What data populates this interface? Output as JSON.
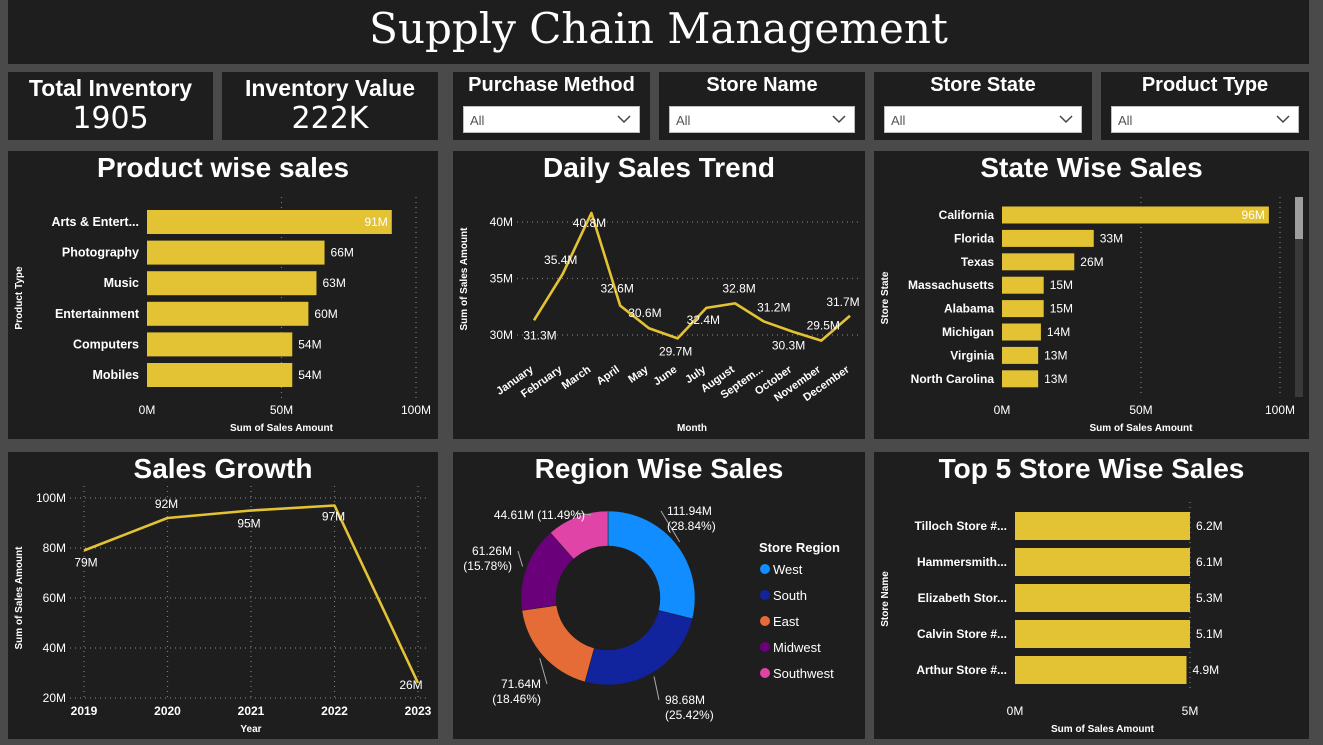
{
  "title": "Supply Chain Management",
  "kpis": [
    {
      "label": "Total Inventory",
      "value": "1905"
    },
    {
      "label": "Inventory Value",
      "value": "222K"
    }
  ],
  "slicers": [
    {
      "label": "Purchase Method",
      "value": "All"
    },
    {
      "label": "Store Name",
      "value": "All"
    },
    {
      "label": "Store State",
      "value": "All"
    },
    {
      "label": "Product Type",
      "value": "All"
    }
  ],
  "colors": {
    "bar": "#e3c234",
    "line": "#e3c234",
    "panel": "#1e1e1e",
    "background": "#4a4a4a",
    "grid": "#7a7a7a"
  },
  "chart_data": [
    {
      "id": "product",
      "type": "bar",
      "orientation": "horizontal",
      "title": "Product wise sales",
      "xlabel": "Sum of Sales Amount",
      "ylabel": "Product Type",
      "categories": [
        "Arts & Entert...",
        "Photography",
        "Music",
        "Entertainment",
        "Computers",
        "Mobiles"
      ],
      "values": [
        91,
        66,
        63,
        60,
        54,
        54
      ],
      "data_labels": [
        "91M",
        "66M",
        "63M",
        "60M",
        "54M",
        "54M"
      ],
      "xlim": [
        0,
        100
      ],
      "xticks": [
        "0M",
        "50M",
        "100M"
      ]
    },
    {
      "id": "daily",
      "type": "line",
      "title": "Daily Sales Trend",
      "xlabel": "Month",
      "ylabel": "Sum of Sales Amount",
      "categories": [
        "January",
        "February",
        "March",
        "April",
        "May",
        "June",
        "July",
        "August",
        "Septem...",
        "October",
        "November",
        "December"
      ],
      "values": [
        31.3,
        35.4,
        40.8,
        32.6,
        30.6,
        29.7,
        32.4,
        32.8,
        31.2,
        30.3,
        29.5,
        31.7
      ],
      "data_labels": [
        "31.3M",
        "35.4M",
        "40.8M",
        "32.6M",
        "30.6M",
        "29.7M",
        "32.4M",
        "32.8M",
        "31.2M",
        "30.3M",
        "29.5M",
        "31.7M"
      ],
      "ylim": [
        30,
        40
      ],
      "yticks": [
        "30M",
        "35M",
        "40M"
      ]
    },
    {
      "id": "state",
      "type": "bar",
      "orientation": "horizontal",
      "title": "State Wise Sales",
      "xlabel": "Sum of Sales Amount",
      "ylabel": "Store State",
      "categories": [
        "California",
        "Florida",
        "Texas",
        "Massachusetts",
        "Alabama",
        "Michigan",
        "Virginia",
        "North Carolina"
      ],
      "values": [
        96,
        33,
        26,
        15,
        15,
        14,
        13,
        13
      ],
      "data_labels": [
        "96M",
        "33M",
        "26M",
        "15M",
        "15M",
        "14M",
        "13M",
        "13M"
      ],
      "xlim": [
        0,
        100
      ],
      "xticks": [
        "0M",
        "50M",
        "100M"
      ]
    },
    {
      "id": "growth",
      "type": "line",
      "title": "Sales Growth",
      "xlabel": "Year",
      "ylabel": "Sum of Sales Amount",
      "categories": [
        "2019",
        "2020",
        "2021",
        "2022",
        "2023"
      ],
      "values": [
        79,
        92,
        95,
        97,
        26
      ],
      "data_labels": [
        "79M",
        "92M",
        "95M",
        "97M",
        "26M"
      ],
      "ylim": [
        20,
        100
      ],
      "yticks": [
        "20M",
        "40M",
        "60M",
        "80M",
        "100M"
      ]
    },
    {
      "id": "region",
      "type": "pie",
      "donut": true,
      "title": "Region Wise Sales",
      "legend_title": "Store Region",
      "legend_position": "right",
      "categories": [
        "West",
        "South",
        "East",
        "Midwest",
        "Southwest"
      ],
      "values": [
        111.94,
        98.68,
        71.64,
        61.26,
        44.61
      ],
      "percent_labels": [
        "111.94M (28.84%)",
        "98.68M (25.42%)",
        "71.64M (18.46%)",
        "61.26M (15.78%)",
        "44.61M (11.49%)"
      ],
      "colors": [
        "#118dff",
        "#12239e",
        "#e66c37",
        "#6b007b",
        "#e044a7"
      ]
    },
    {
      "id": "store",
      "type": "bar",
      "orientation": "horizontal",
      "title": "Top 5 Store Wise Sales",
      "xlabel": "Sum of Sales Amount",
      "ylabel": "Store Name",
      "categories": [
        "Tilloch Store #...",
        "Hammersmith...",
        "Elizabeth Stor...",
        "Calvin Store #...",
        "Arthur Store #..."
      ],
      "values": [
        6.2,
        6.1,
        5.3,
        5.1,
        4.9
      ],
      "data_labels": [
        "6.2M",
        "6.1M",
        "5.3M",
        "5.1M",
        "4.9M"
      ],
      "xlim": [
        0,
        5
      ],
      "xticks": [
        "0M",
        "5M"
      ]
    }
  ]
}
